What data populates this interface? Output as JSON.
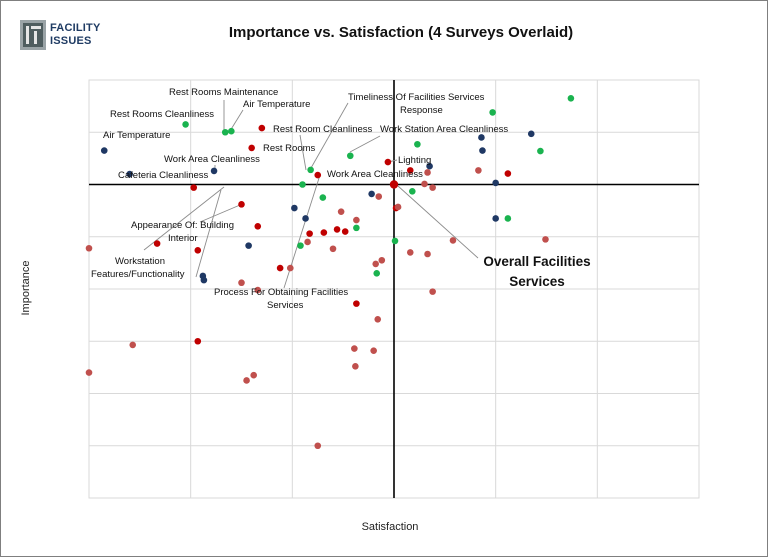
{
  "brand": {
    "line1": "FACILITY",
    "line2": "ISSUES"
  },
  "chart_data": {
    "type": "scatter",
    "title": "Importance vs. Satisfaction (4 Surveys Overlaid)",
    "xlabel": "Satisfaction",
    "ylabel": "Importance",
    "xlim": [
      -3,
      3
    ],
    "ylim": [
      -6,
      2
    ],
    "crosshair": [
      0,
      0
    ],
    "grid": true,
    "colors": {
      "navy": "#1f3864",
      "green": "#1ab34f",
      "red": "#c00000",
      "pink": "#c0504d"
    },
    "series": [
      {
        "name": "Survey A",
        "color": "#1f3864",
        "points": [
          [
            -2.85,
            0.65
          ],
          [
            -2.6,
            0.2
          ],
          [
            -1.77,
            0.26
          ],
          [
            -0.98,
            -0.45
          ],
          [
            -0.87,
            -0.65
          ],
          [
            -1.43,
            -1.17
          ],
          [
            -1.87,
            -1.83
          ],
          [
            -1.88,
            -1.75
          ],
          [
            -0.22,
            -0.18
          ],
          [
            0.35,
            0.35
          ],
          [
            0.86,
            0.9
          ],
          [
            1.35,
            0.97
          ],
          [
            0.87,
            0.65
          ],
          [
            1.0,
            0.03
          ],
          [
            1.0,
            -0.65
          ]
        ]
      },
      {
        "name": "Survey B",
        "color": "#1ab34f",
        "points": [
          [
            -2.05,
            1.15
          ],
          [
            -1.66,
            1.0
          ],
          [
            -1.6,
            1.02
          ],
          [
            -0.82,
            0.28
          ],
          [
            -0.9,
            0.0
          ],
          [
            -0.7,
            -0.25
          ],
          [
            -0.43,
            0.55
          ],
          [
            -0.92,
            -1.17
          ],
          [
            -0.37,
            -0.83
          ],
          [
            -0.17,
            -1.7
          ],
          [
            0.01,
            -1.08
          ],
          [
            0.18,
            -0.13
          ],
          [
            0.23,
            0.77
          ],
          [
            0.97,
            1.38
          ],
          [
            1.12,
            -0.65
          ],
          [
            1.44,
            0.64
          ],
          [
            1.74,
            1.65
          ]
        ]
      },
      {
        "name": "Survey C",
        "color": "#c00000",
        "points": [
          [
            -1.97,
            -0.06
          ],
          [
            -1.93,
            -1.26
          ],
          [
            -1.5,
            -0.38
          ],
          [
            -1.34,
            -0.8
          ],
          [
            -1.12,
            -1.6
          ],
          [
            -1.3,
            1.08
          ],
          [
            -1.4,
            0.7
          ],
          [
            -2.33,
            -1.13
          ],
          [
            -0.75,
            0.18
          ],
          [
            -0.83,
            -0.94
          ],
          [
            -0.69,
            -0.92
          ],
          [
            -0.48,
            -0.9
          ],
          [
            -0.56,
            -0.86
          ],
          [
            -0.37,
            -2.28
          ],
          [
            -0.06,
            0.43
          ],
          [
            0.0,
            0.0
          ],
          [
            0.02,
            -0.45
          ],
          [
            0.16,
            0.27
          ],
          [
            1.12,
            0.21
          ],
          [
            -1.93,
            -3.0
          ]
        ]
      },
      {
        "name": "Survey D",
        "color": "#c0504d",
        "points": [
          [
            -3.0,
            -1.22
          ],
          [
            -2.57,
            -3.07
          ],
          [
            -3.0,
            -3.6
          ],
          [
            -1.34,
            -2.02
          ],
          [
            -1.45,
            -3.75
          ],
          [
            -1.38,
            -3.65
          ],
          [
            -1.5,
            -1.88
          ],
          [
            -1.02,
            -1.6
          ],
          [
            -0.85,
            -1.1
          ],
          [
            -0.75,
            -5.0
          ],
          [
            -0.6,
            -1.23
          ],
          [
            -0.52,
            -0.52
          ],
          [
            -0.37,
            -0.68
          ],
          [
            -0.18,
            -1.52
          ],
          [
            -0.16,
            -2.58
          ],
          [
            -0.39,
            -3.14
          ],
          [
            -0.38,
            -3.48
          ],
          [
            -0.2,
            -3.18
          ],
          [
            -0.12,
            -1.45
          ],
          [
            0.33,
            0.23
          ],
          [
            0.38,
            -0.06
          ],
          [
            0.3,
            0.01
          ],
          [
            0.16,
            -1.3
          ],
          [
            0.33,
            -1.33
          ],
          [
            0.38,
            -2.05
          ],
          [
            0.58,
            -1.07
          ],
          [
            0.83,
            0.27
          ],
          [
            1.49,
            -1.05
          ],
          [
            -0.15,
            -0.23
          ],
          [
            0.04,
            -0.43
          ]
        ]
      }
    ],
    "annotations": [
      {
        "text": "Rest Rooms Maintenance",
        "point": [
          -1.65,
          1.05
        ]
      },
      {
        "text": "Air Temperature",
        "point": [
          -1.6,
          1.02
        ]
      },
      {
        "text": "Rest Rooms Cleanliness",
        "point": [
          -2.05,
          1.15
        ]
      },
      {
        "text": "Air Temperature",
        "point": [
          -2.85,
          0.65
        ]
      },
      {
        "text": "Rest Rooms",
        "point": [
          -1.4,
          0.7
        ]
      },
      {
        "text": "Rest Room Cleanliness",
        "point": [
          -0.82,
          0.28
        ]
      },
      {
        "text": "Timeliness Of Facilities Services",
        "point": [
          0.23,
          0.77
        ]
      },
      {
        "text": "Response",
        "point": [
          0.23,
          0.77
        ]
      },
      {
        "text": "Work Station Area Cleanliness",
        "point": [
          -0.43,
          0.55
        ]
      },
      {
        "text": "Lighting",
        "point": [
          -0.06,
          0.43
        ]
      },
      {
        "text": "Work Area Cleanliness",
        "point": [
          -1.77,
          0.26
        ]
      },
      {
        "text": "Work Area Cleanliness",
        "point": [
          -0.75,
          0.18
        ]
      },
      {
        "text": "Cafeteria Cleanliness",
        "point": [
          -2.6,
          0.2
        ]
      },
      {
        "text": "Appearance Of: Building",
        "point": [
          -1.5,
          -0.38
        ]
      },
      {
        "text": "Interior",
        "point": [
          -1.5,
          -0.38
        ]
      },
      {
        "text": "Workstation",
        "point": [
          -1.66,
          0.0
        ]
      },
      {
        "text": "Features/Functionality",
        "point": [
          -1.66,
          0.0
        ]
      },
      {
        "text": "Process For Obtaining Facilities",
        "point": [
          -0.83,
          -0.94
        ]
      },
      {
        "text": "Services",
        "point": [
          -0.83,
          -0.94
        ]
      },
      {
        "text": "Overall Facilities",
        "point": [
          0.0,
          0.0
        ]
      },
      {
        "text": "Services",
        "point": [
          0.0,
          0.0
        ]
      }
    ]
  }
}
